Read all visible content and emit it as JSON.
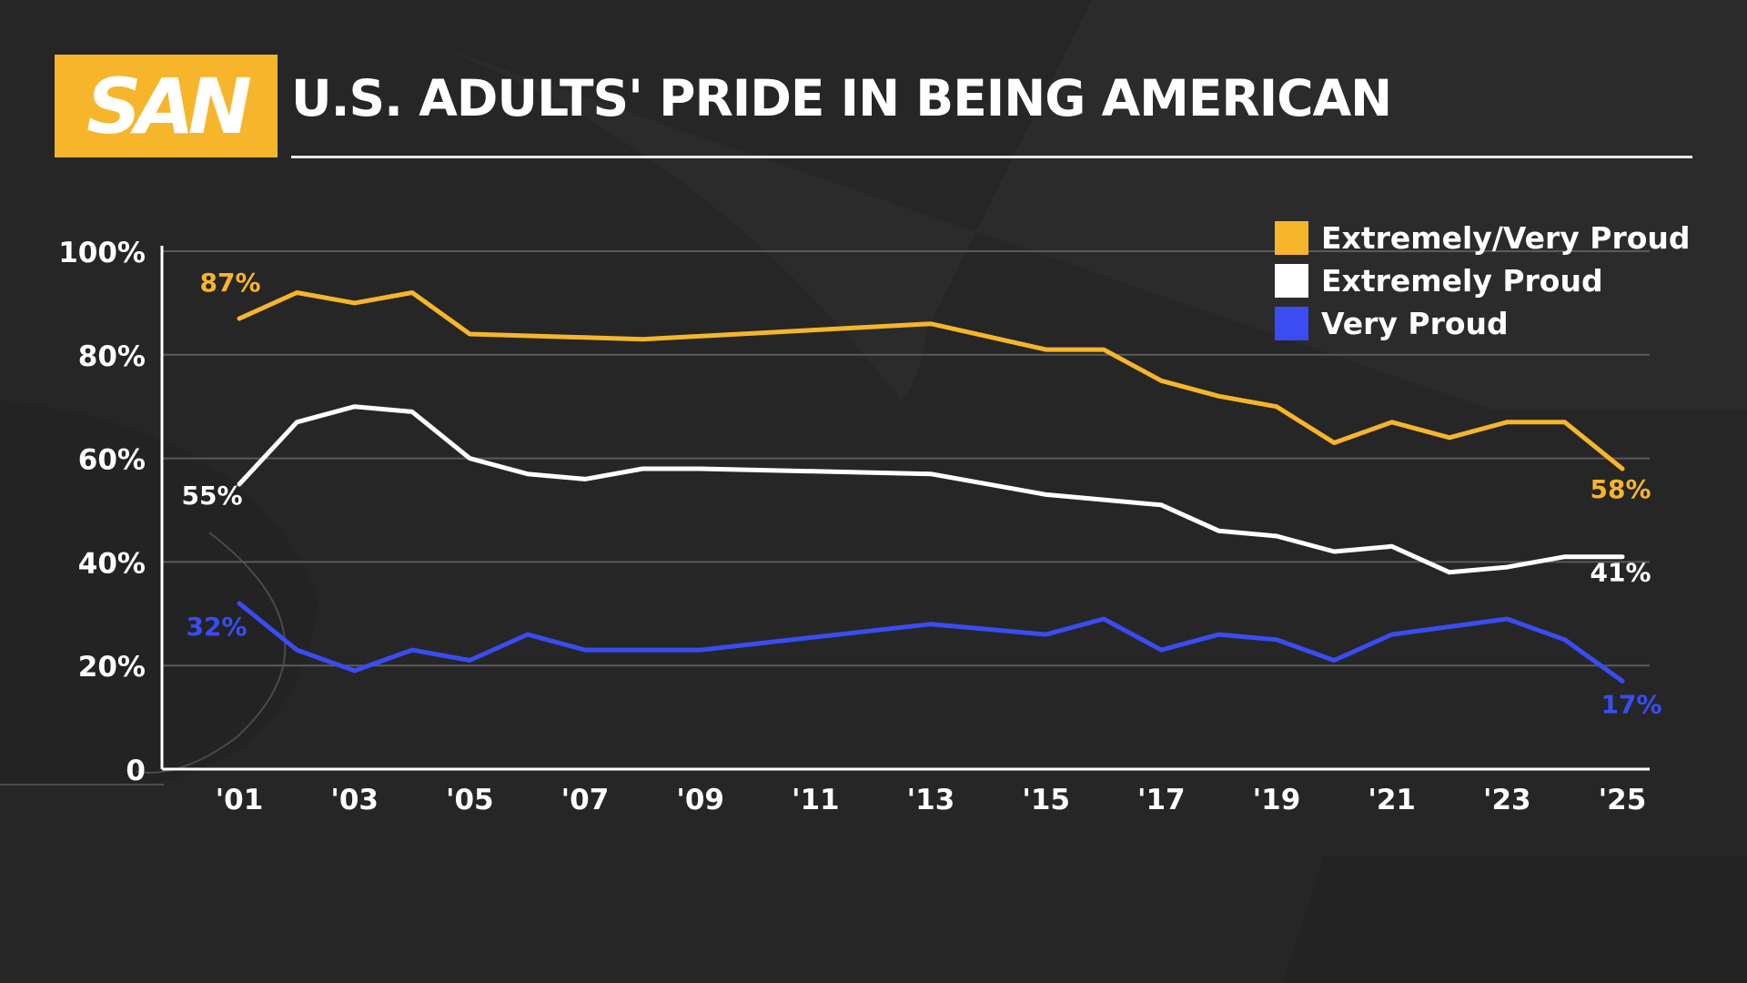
{
  "header": {
    "logo_text": "SAN",
    "title": "U.S. ADULTS' PRIDE IN BEING AMERICAN"
  },
  "colors": {
    "background": "#262627",
    "brand_yellow": "#f7b52c",
    "white": "#ffffff",
    "blue": "#3a4cf2",
    "grid": "#5a5a5a"
  },
  "chart_data": {
    "type": "line",
    "title": "U.S. ADULTS' PRIDE IN BEING AMERICAN",
    "xlabel": "",
    "ylabel": "",
    "ylim": [
      0,
      100
    ],
    "xlim": [
      2001,
      2025
    ],
    "y_ticks": [
      "0",
      "20%",
      "40%",
      "60%",
      "80%",
      "100%"
    ],
    "y_tick_values": [
      0,
      20,
      40,
      60,
      80,
      100
    ],
    "x_ticks": [
      "'01",
      "'03",
      "'05",
      "'07",
      "'09",
      "'11",
      "'13",
      "'15",
      "'17",
      "'19",
      "'21",
      "'23",
      "'25"
    ],
    "x_tick_values": [
      2001,
      2003,
      2005,
      2007,
      2009,
      2011,
      2013,
      2015,
      2017,
      2019,
      2021,
      2023,
      2025
    ],
    "grid": true,
    "legend_position": "top-right",
    "series": [
      {
        "name": "Extremely/Very Proud",
        "color": "#f7b52c",
        "x": [
          2001,
          2002,
          2003,
          2004,
          2005,
          2008,
          2013,
          2015,
          2016,
          2017,
          2018,
          2019,
          2020,
          2021,
          2022,
          2023,
          2024,
          2025
        ],
        "values": [
          87,
          92,
          90,
          92,
          84,
          83,
          86,
          81,
          81,
          75,
          72,
          70,
          63,
          67,
          64,
          67,
          67,
          58
        ],
        "start_label": "87%",
        "end_label": "58%"
      },
      {
        "name": "Extremely Proud",
        "color": "#ffffff",
        "x": [
          2001,
          2002,
          2003,
          2004,
          2005,
          2006,
          2007,
          2008,
          2009,
          2013,
          2015,
          2017,
          2018,
          2019,
          2020,
          2021,
          2022,
          2023,
          2024,
          2025
        ],
        "values": [
          55,
          67,
          70,
          69,
          60,
          57,
          56,
          58,
          58,
          57,
          53,
          51,
          46,
          45,
          42,
          43,
          38,
          39,
          41,
          41
        ],
        "start_label": "55%",
        "end_label": "41%"
      },
      {
        "name": "Very Proud",
        "color": "#3a4cf2",
        "x": [
          2001,
          2002,
          2003,
          2004,
          2005,
          2006,
          2007,
          2009,
          2013,
          2015,
          2016,
          2017,
          2018,
          2019,
          2020,
          2021,
          2023,
          2024,
          2025
        ],
        "values": [
          32,
          23,
          19,
          23,
          21,
          26,
          23,
          23,
          28,
          26,
          29,
          23,
          26,
          25,
          21,
          26,
          29,
          25,
          17
        ],
        "start_label": "32%",
        "end_label": "17%"
      }
    ]
  }
}
